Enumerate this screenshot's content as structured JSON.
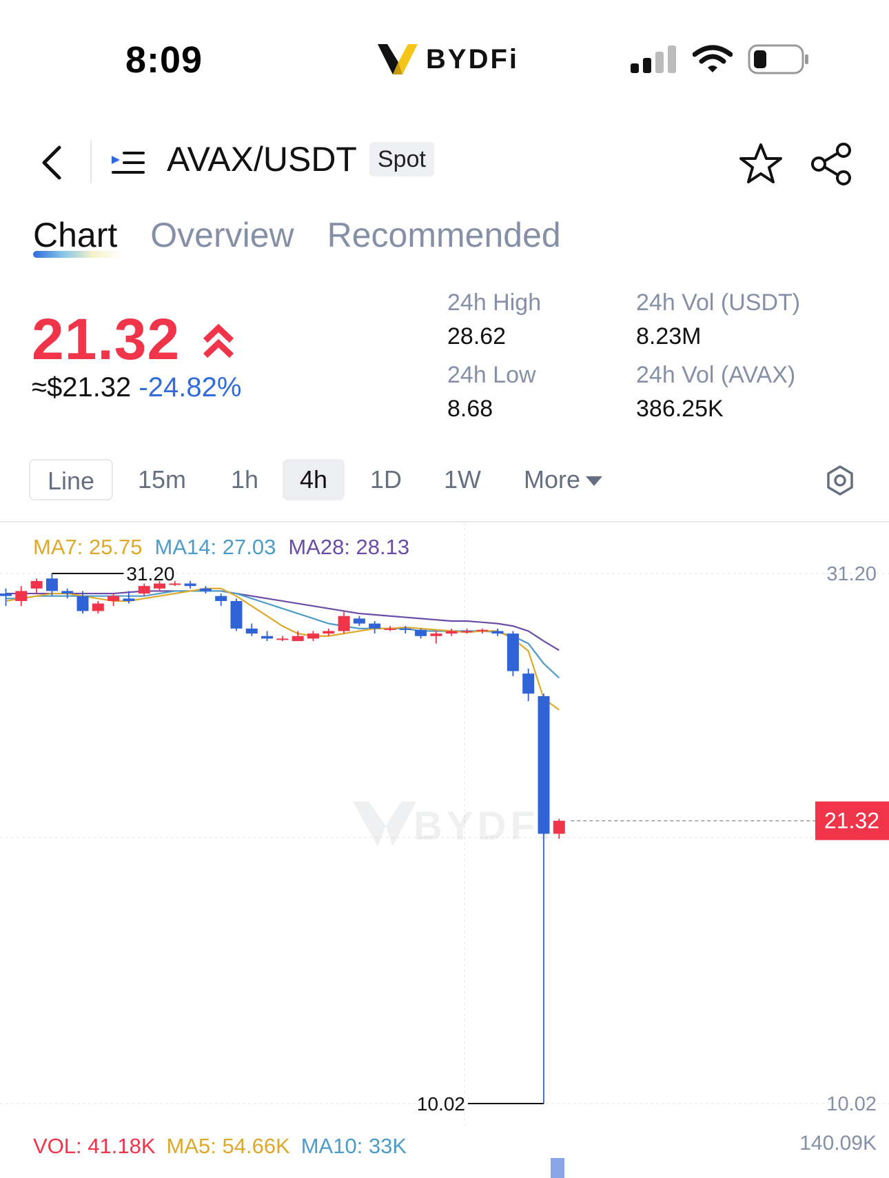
{
  "status_bar": {
    "time": "8:09",
    "brand": "BYDFi",
    "icons": [
      "signal-icon",
      "wifi-icon",
      "battery-icon"
    ]
  },
  "header": {
    "pair": "AVAX/USDT",
    "market_type": "Spot",
    "icons": [
      "back-arrow-icon",
      "menu-icon",
      "star-icon",
      "share-icon"
    ]
  },
  "tabs": [
    {
      "label": "Chart",
      "active": true
    },
    {
      "label": "Overview",
      "active": false
    },
    {
      "label": "Recommended",
      "active": false
    }
  ],
  "ticker": {
    "last_price": "21.32",
    "usd_price": "≈$21.32",
    "change_pct": "-24.82%",
    "high_label": "24h High",
    "high_value": "28.62",
    "low_label": "24h Low",
    "low_value": "8.68",
    "vol_usdt_label": "24h Vol (USDT)",
    "vol_usdt_value": "8.23M",
    "vol_avax_label": "24h Vol (AVAX)",
    "vol_avax_value": "386.25K"
  },
  "intervals": [
    {
      "label": "Line",
      "active": false
    },
    {
      "label": "15m",
      "active": false
    },
    {
      "label": "1h",
      "active": false
    },
    {
      "label": "4h",
      "active": true
    },
    {
      "label": "1D",
      "active": false
    },
    {
      "label": "1W",
      "active": false
    },
    {
      "label": "More",
      "active": false
    }
  ],
  "ma_legend": {
    "ma7": "MA7: 25.75",
    "ma14": "MA14: 27.03",
    "ma28": "MA28: 28.13"
  },
  "vol_legend": {
    "vol": "VOL: 41.18K",
    "ma5": "MA5: 54.66K",
    "ma10": "MA10: 33K",
    "max": "140.09K"
  },
  "colors": {
    "up": "#f0344a",
    "down": "#2f63d6",
    "ma7": "#dea82b",
    "ma14": "#4b9cc8",
    "ma28": "#6a4ca8"
  },
  "chart_data": {
    "type": "candlestick",
    "interval": "4h",
    "watermark": "BYDFi",
    "y_axis_labels": [
      "31.20",
      "10.02"
    ],
    "ylim": [
      10.02,
      31.2
    ],
    "high_marker": "31.20",
    "low_marker": "10.02",
    "last_price_label": "21.32",
    "candles": [
      {
        "o": 30.4,
        "h": 30.6,
        "l": 29.9,
        "c": 30.3
      },
      {
        "o": 30.1,
        "h": 30.7,
        "l": 29.9,
        "c": 30.5
      },
      {
        "o": 30.6,
        "h": 31.0,
        "l": 30.4,
        "c": 30.9
      },
      {
        "o": 31.0,
        "h": 31.2,
        "l": 30.3,
        "c": 30.5
      },
      {
        "o": 30.5,
        "h": 30.6,
        "l": 30.2,
        "c": 30.4
      },
      {
        "o": 30.3,
        "h": 30.5,
        "l": 29.6,
        "c": 29.7
      },
      {
        "o": 29.7,
        "h": 30.1,
        "l": 29.6,
        "c": 30.0
      },
      {
        "o": 30.1,
        "h": 30.4,
        "l": 29.9,
        "c": 30.3
      },
      {
        "o": 30.2,
        "h": 30.5,
        "l": 30.0,
        "c": 30.1
      },
      {
        "o": 30.4,
        "h": 30.8,
        "l": 30.3,
        "c": 30.7
      },
      {
        "o": 30.6,
        "h": 30.9,
        "l": 30.5,
        "c": 30.8
      },
      {
        "o": 30.8,
        "h": 30.9,
        "l": 30.7,
        "c": 30.8
      },
      {
        "o": 30.8,
        "h": 30.9,
        "l": 30.6,
        "c": 30.7
      },
      {
        "o": 30.6,
        "h": 30.7,
        "l": 30.4,
        "c": 30.5
      },
      {
        "o": 30.3,
        "h": 30.4,
        "l": 29.9,
        "c": 30.1
      },
      {
        "o": 30.1,
        "h": 30.2,
        "l": 28.9,
        "c": 29.0
      },
      {
        "o": 29.0,
        "h": 29.2,
        "l": 28.7,
        "c": 28.8
      },
      {
        "o": 28.7,
        "h": 28.9,
        "l": 28.5,
        "c": 28.6
      },
      {
        "o": 28.6,
        "h": 28.7,
        "l": 28.5,
        "c": 28.6
      },
      {
        "o": 28.5,
        "h": 28.9,
        "l": 28.5,
        "c": 28.7
      },
      {
        "o": 28.6,
        "h": 28.9,
        "l": 28.5,
        "c": 28.8
      },
      {
        "o": 28.8,
        "h": 29.0,
        "l": 28.7,
        "c": 28.9
      },
      {
        "o": 28.9,
        "h": 29.7,
        "l": 28.8,
        "c": 29.5
      },
      {
        "o": 29.4,
        "h": 29.5,
        "l": 29.1,
        "c": 29.2
      },
      {
        "o": 29.2,
        "h": 29.3,
        "l": 28.8,
        "c": 29.0
      },
      {
        "o": 29.0,
        "h": 29.1,
        "l": 28.9,
        "c": 29.0
      },
      {
        "o": 29.0,
        "h": 29.1,
        "l": 28.8,
        "c": 28.95
      },
      {
        "o": 28.95,
        "h": 29.0,
        "l": 28.6,
        "c": 28.7
      },
      {
        "o": 28.7,
        "h": 28.9,
        "l": 28.4,
        "c": 28.8
      },
      {
        "o": 28.8,
        "h": 29.0,
        "l": 28.7,
        "c": 28.9
      },
      {
        "o": 28.9,
        "h": 29.0,
        "l": 28.8,
        "c": 28.9
      },
      {
        "o": 28.9,
        "h": 29.0,
        "l": 28.8,
        "c": 28.95
      },
      {
        "o": 28.9,
        "h": 29.0,
        "l": 28.7,
        "c": 28.8
      },
      {
        "o": 28.8,
        "h": 28.9,
        "l": 27.1,
        "c": 27.3
      },
      {
        "o": 27.2,
        "h": 27.4,
        "l": 26.1,
        "c": 26.4
      },
      {
        "o": 26.3,
        "h": 26.4,
        "l": 10.02,
        "c": 20.8
      },
      {
        "o": 20.8,
        "h": 21.4,
        "l": 20.6,
        "c": 21.32
      }
    ],
    "ma7": [
      30.1,
      30.2,
      30.3,
      30.4,
      30.4,
      30.3,
      30.2,
      30.1,
      30.1,
      30.2,
      30.3,
      30.4,
      30.5,
      30.6,
      30.6,
      30.3,
      29.9,
      29.5,
      29.1,
      28.8,
      28.7,
      28.7,
      28.8,
      28.9,
      29.0,
      29.0,
      29.05,
      29.0,
      28.95,
      28.9,
      28.85,
      28.9,
      28.9,
      28.6,
      28.1,
      26.2,
      25.75
    ],
    "ma14": [
      30.2,
      30.2,
      30.3,
      30.3,
      30.3,
      30.3,
      30.3,
      30.3,
      30.3,
      30.3,
      30.4,
      30.5,
      30.5,
      30.5,
      30.5,
      30.4,
      30.2,
      30.0,
      29.8,
      29.6,
      29.4,
      29.2,
      29.1,
      29.0,
      29.0,
      29.0,
      29.0,
      28.9,
      28.9,
      28.9,
      28.9,
      28.9,
      28.85,
      28.7,
      28.4,
      27.6,
      27.03
    ],
    "ma28": [
      30.4,
      30.4,
      30.4,
      30.4,
      30.4,
      30.4,
      30.4,
      30.4,
      30.45,
      30.5,
      30.5,
      30.5,
      30.5,
      30.5,
      30.5,
      30.4,
      30.3,
      30.2,
      30.1,
      30.0,
      29.9,
      29.8,
      29.7,
      29.6,
      29.55,
      29.5,
      29.45,
      29.4,
      29.35,
      29.3,
      29.3,
      29.25,
      29.2,
      29.1,
      28.9,
      28.5,
      28.13
    ]
  }
}
